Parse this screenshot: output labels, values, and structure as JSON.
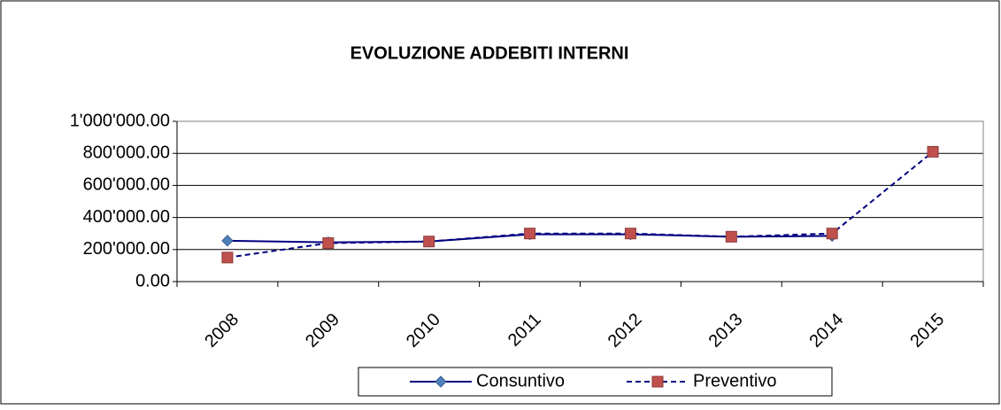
{
  "chart_data": {
    "type": "line",
    "title": "EVOLUZIONE ADDEBITI INTERNI",
    "categories": [
      "2008",
      "2009",
      "2010",
      "2011",
      "2012",
      "2013",
      "2014",
      "2015"
    ],
    "series": [
      {
        "name": "Consuntivo",
        "color": "#000080",
        "marker_color": "#4f81bd",
        "marker": "diamond",
        "dash": false,
        "values": [
          255000,
          245000,
          250000,
          295000,
          295000,
          280000,
          285000,
          null
        ]
      },
      {
        "name": "Preventivo",
        "color": "#000080",
        "marker_color": "#c0504d",
        "marker": "square",
        "dash": true,
        "values": [
          150000,
          240000,
          250000,
          300000,
          300000,
          280000,
          300000,
          810000
        ]
      }
    ],
    "ylim": [
      0,
      1000000
    ],
    "yticks": [
      {
        "value": 0,
        "label": "0.00"
      },
      {
        "value": 200000,
        "label": "200'000.00"
      },
      {
        "value": 400000,
        "label": "400'000.00"
      },
      {
        "value": 600000,
        "label": "600'000.00"
      },
      {
        "value": 800000,
        "label": "800'000.00"
      },
      {
        "value": 1000000,
        "label": "1'000'000.00"
      }
    ],
    "grid": true,
    "legend": "bottom"
  }
}
